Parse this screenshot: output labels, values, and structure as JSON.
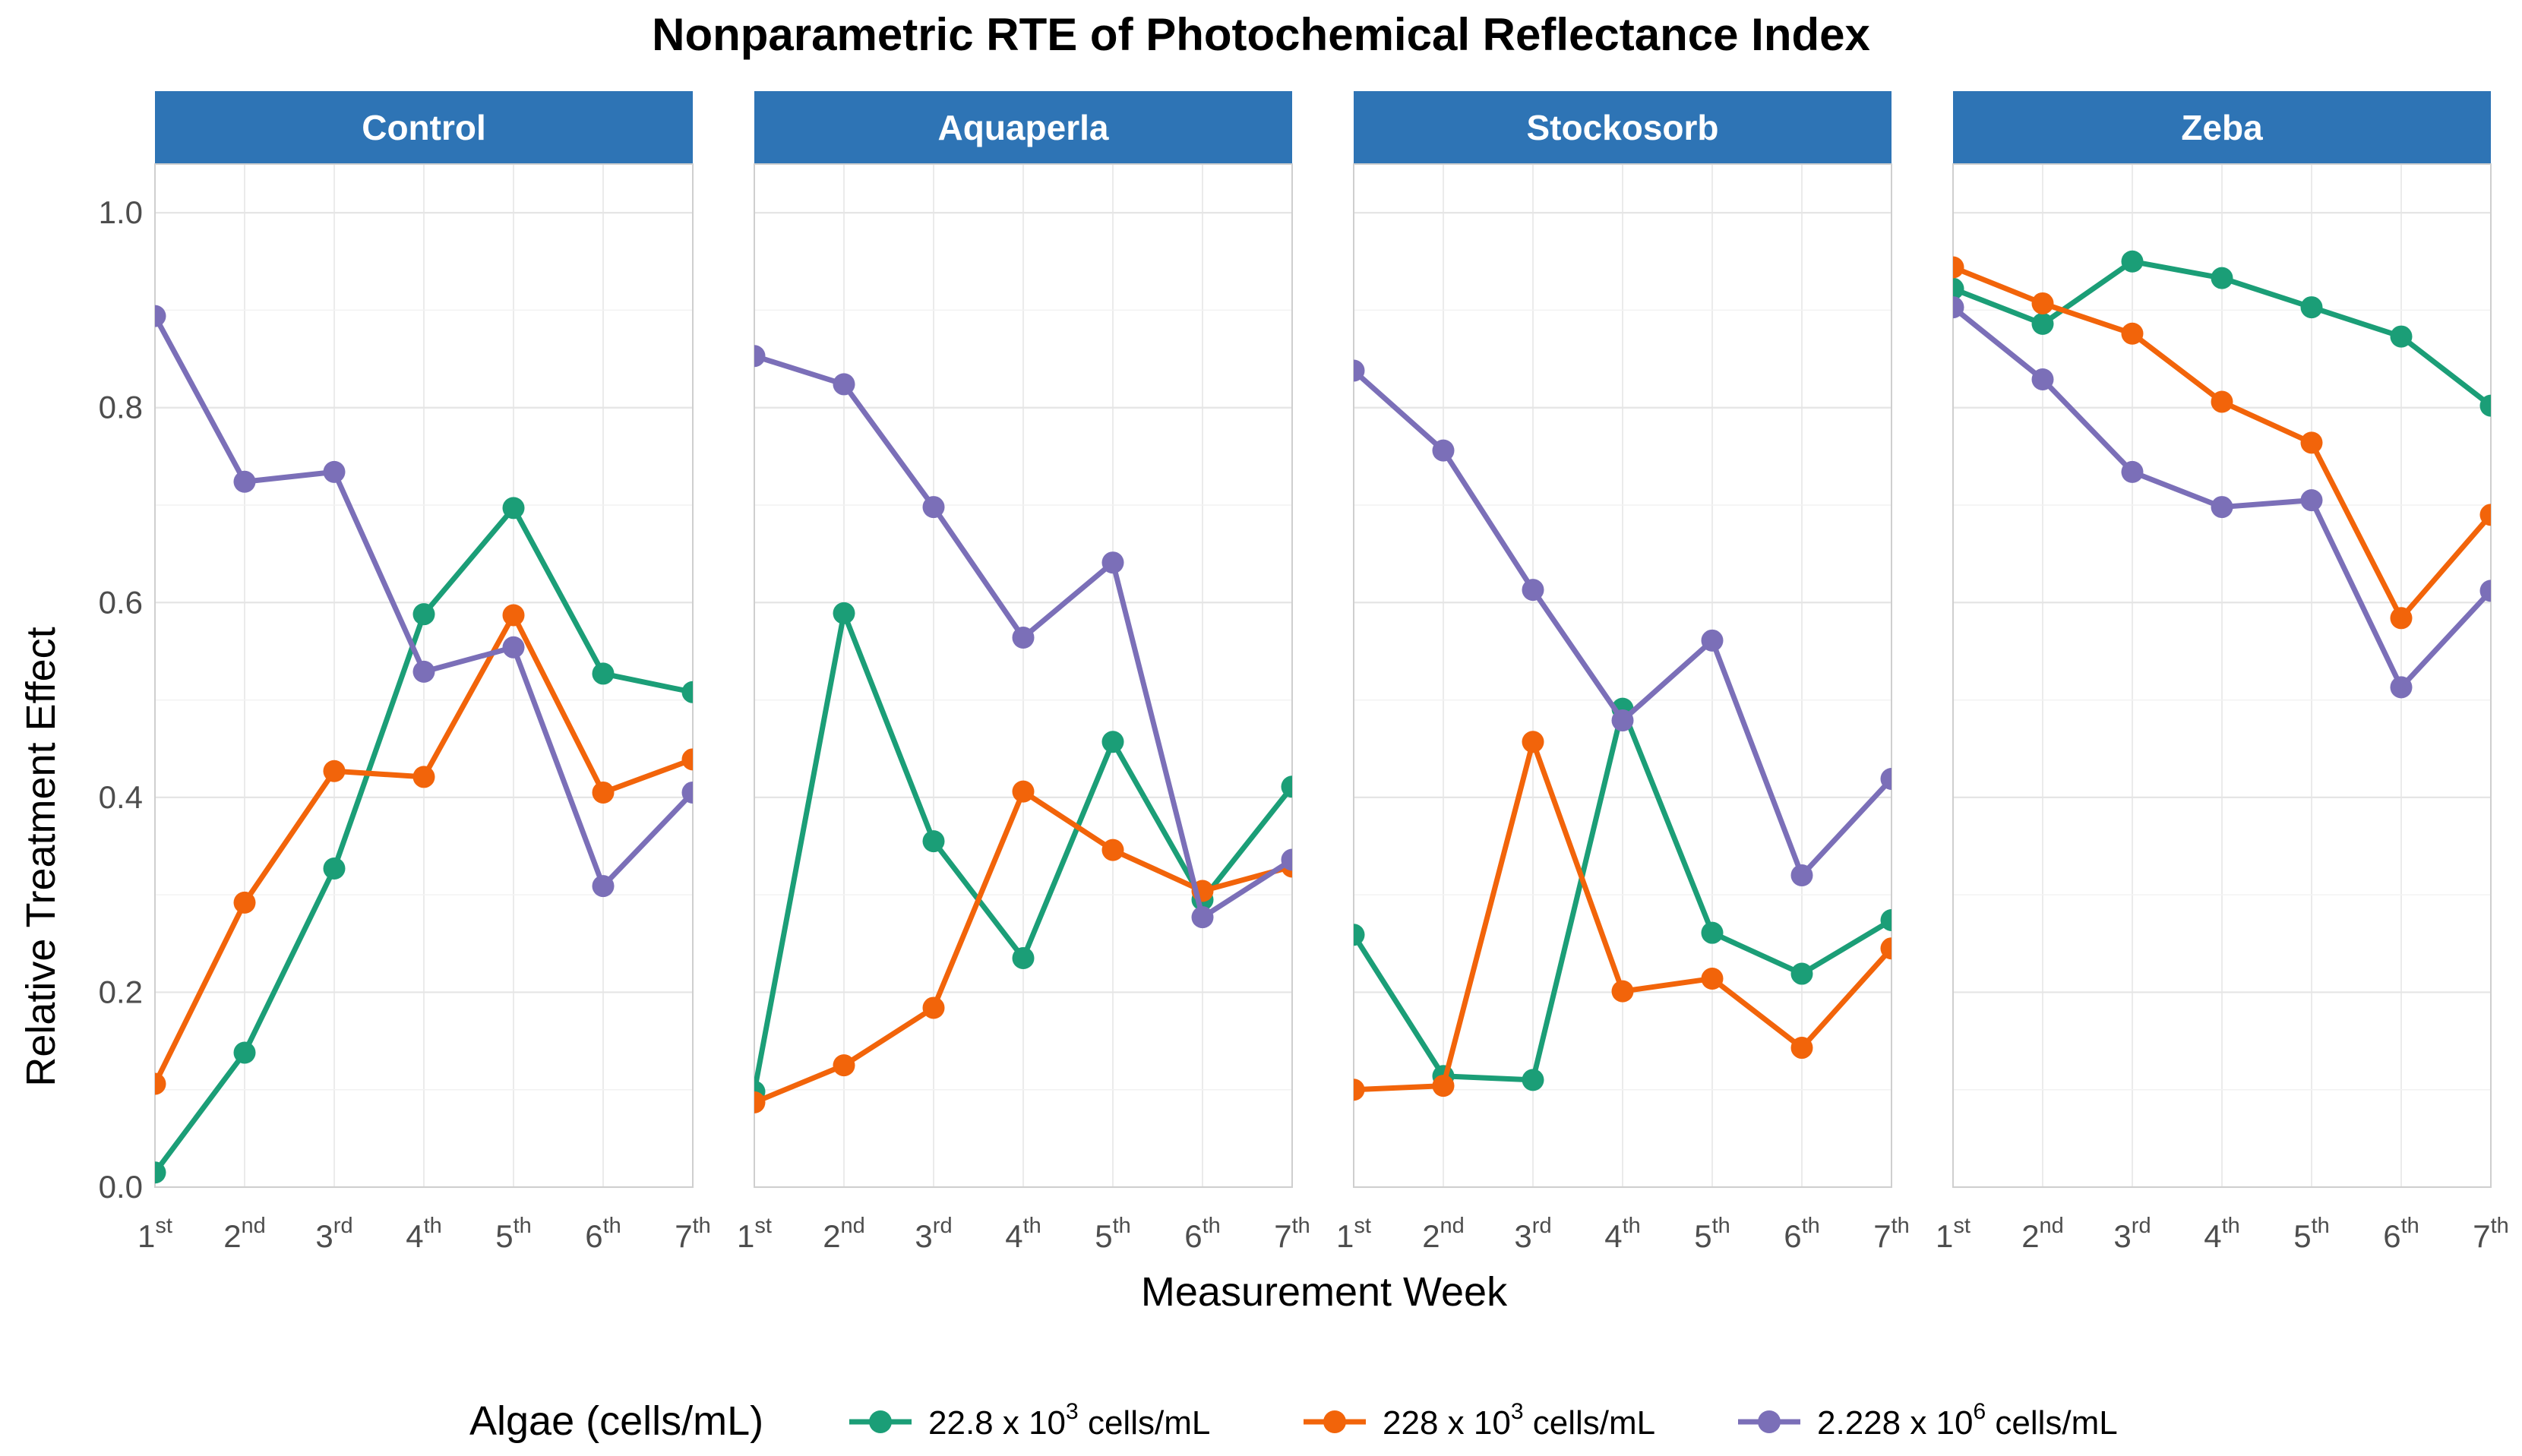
{
  "chart_data": {
    "type": "line",
    "title": "Nonparametric RTE of Photochemical Reflectance Index",
    "xlabel": "Measurement Week",
    "ylabel": "Relative Treatment Effect",
    "ylim": [
      0,
      1.05
    ],
    "yticks": [
      "0.0",
      "0.2",
      "0.4",
      "0.6",
      "0.8",
      "1.0"
    ],
    "categories": [
      {
        "base": "1",
        "sup": "st"
      },
      {
        "base": "2",
        "sup": "nd"
      },
      {
        "base": "3",
        "sup": "rd"
      },
      {
        "base": "4",
        "sup": "th"
      },
      {
        "base": "5",
        "sup": "th"
      },
      {
        "base": "6",
        "sup": "th"
      },
      {
        "base": "7",
        "sup": "th"
      }
    ],
    "legend": {
      "title": "Algae (cells/mL)",
      "position": "bottom",
      "entries": [
        {
          "base": "22.8 x 10",
          "sup": "3",
          "unit": " cells/mL"
        },
        {
          "base": "228 x 10",
          "sup": "3",
          "unit": " cells/mL"
        },
        {
          "base": "2.228 x 10",
          "sup": "6",
          "unit": " cells/mL"
        }
      ]
    },
    "colors": [
      "#1b9e77",
      "#f2640a",
      "#7b6fb8"
    ],
    "strip_color": "#2e74b5",
    "grid": true,
    "panels": [
      {
        "name": "Control",
        "series": [
          {
            "name": "22.8 x 10^3 cells/mL",
            "values": [
              0.015,
              0.138,
              0.327,
              0.588,
              0.697,
              0.527,
              0.508
            ]
          },
          {
            "name": "228 x 10^3 cells/mL",
            "values": [
              0.106,
              0.292,
              0.427,
              0.421,
              0.587,
              0.405,
              0.439
            ]
          },
          {
            "name": "2.228 x 10^6 cells/mL",
            "values": [
              0.894,
              0.724,
              0.734,
              0.529,
              0.554,
              0.309,
              0.405
            ]
          }
        ]
      },
      {
        "name": "Aquaperla",
        "series": [
          {
            "name": "22.8 x 10^3 cells/mL",
            "values": [
              0.098,
              0.589,
              0.355,
              0.235,
              0.457,
              0.295,
              0.411
            ]
          },
          {
            "name": "228 x 10^3 cells/mL",
            "values": [
              0.087,
              0.125,
              0.184,
              0.406,
              0.346,
              0.304,
              0.329
            ]
          },
          {
            "name": "2.228 x 10^6 cells/mL",
            "values": [
              0.853,
              0.824,
              0.698,
              0.564,
              0.641,
              0.277,
              0.336
            ]
          }
        ]
      },
      {
        "name": "Stockosorb",
        "series": [
          {
            "name": "22.8 x 10^3 cells/mL",
            "values": [
              0.259,
              0.114,
              0.11,
              0.491,
              0.261,
              0.219,
              0.274
            ]
          },
          {
            "name": "228 x 10^3 cells/mL",
            "values": [
              0.1,
              0.104,
              0.457,
              0.201,
              0.214,
              0.143,
              0.245
            ]
          },
          {
            "name": "2.228 x 10^6 cells/mL",
            "values": [
              0.838,
              0.756,
              0.613,
              0.479,
              0.561,
              0.32,
              0.419
            ]
          }
        ]
      },
      {
        "name": "Zeba",
        "series": [
          {
            "name": "22.8 x 10^3 cells/mL",
            "values": [
              0.922,
              0.886,
              0.95,
              0.933,
              0.903,
              0.873,
              0.802
            ]
          },
          {
            "name": "228 x 10^3 cells/mL",
            "values": [
              0.944,
              0.907,
              0.876,
              0.806,
              0.764,
              0.584,
              0.69
            ]
          },
          {
            "name": "2.228 x 10^6 cells/mL",
            "values": [
              0.903,
              0.829,
              0.734,
              0.698,
              0.705,
              0.513,
              0.612
            ]
          }
        ]
      }
    ]
  }
}
